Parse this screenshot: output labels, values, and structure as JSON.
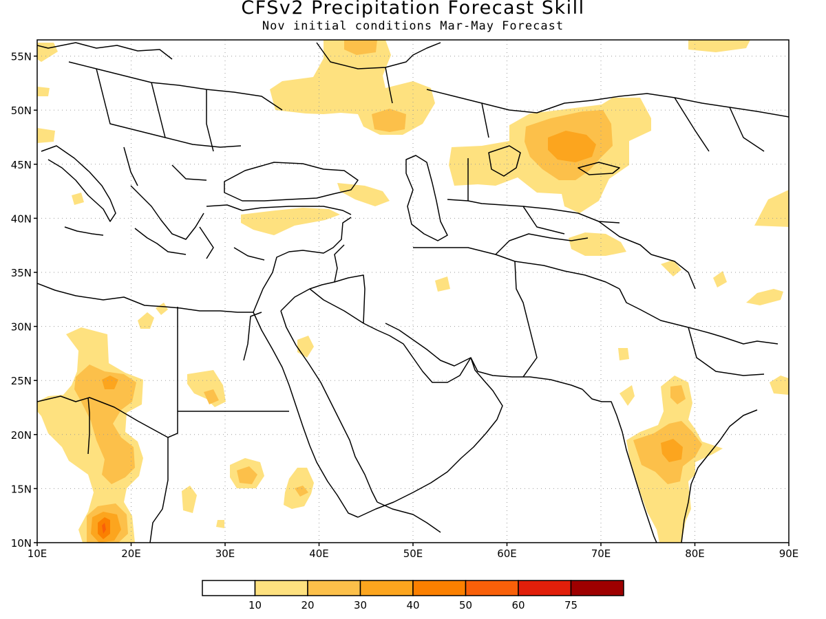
{
  "title": "CFSv2 Precipitation Forecast Skill",
  "subtitle": "Nov initial conditions   Mar-May Forecast",
  "map": {
    "lon_range": [
      10,
      90
    ],
    "lat_range": [
      10,
      56.5
    ],
    "x_ticks": [
      "10E",
      "20E",
      "30E",
      "40E",
      "50E",
      "60E",
      "70E",
      "80E",
      "90E"
    ],
    "y_ticks": [
      "10N",
      "15N",
      "20N",
      "25N",
      "30N",
      "35N",
      "40N",
      "45N",
      "50N",
      "55N"
    ],
    "gridlines": "dotted"
  },
  "colorbar": {
    "colors": [
      "#ffffff",
      "#fee17f",
      "#fcc04a",
      "#fca51e",
      "#fb8000",
      "#f96009",
      "#e21f0a",
      "#9e0000"
    ],
    "labels": [
      "10",
      "20",
      "30",
      "40",
      "50",
      "60",
      "75"
    ]
  }
}
